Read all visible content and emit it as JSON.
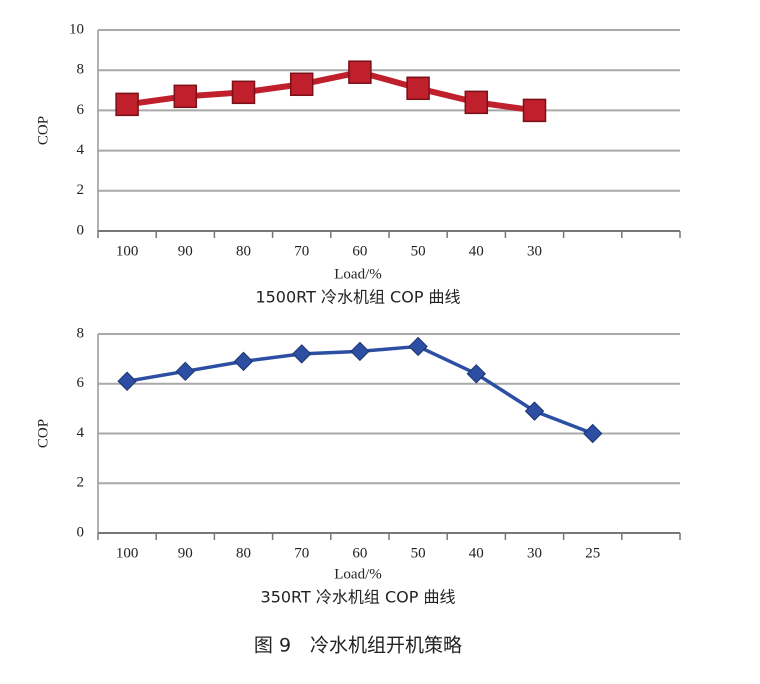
{
  "chart_data": [
    {
      "type": "line",
      "title": "1500RT 冷水机组 COP 曲线",
      "x_label": "Load/%",
      "y_label": "COP",
      "categories": [
        "100",
        "90",
        "80",
        "70",
        "60",
        "50",
        "40",
        "30",
        null,
        null
      ],
      "series": [
        {
          "name": "1500RT",
          "color": "#c01f2c",
          "marker": "square",
          "values": [
            6.3,
            6.7,
            6.9,
            7.3,
            7.9,
            7.1,
            6.4,
            6.0,
            null,
            null
          ]
        }
      ],
      "ylim": [
        0,
        10
      ],
      "yticks": [
        0,
        2,
        4,
        6,
        8,
        10
      ],
      "grid": true
    },
    {
      "type": "line",
      "title": "350RT 冷水机组 COP 曲线",
      "x_label": "Load/%",
      "y_label": "COP",
      "categories": [
        "100",
        "90",
        "80",
        "70",
        "60",
        "50",
        "40",
        "30",
        "25",
        null
      ],
      "series": [
        {
          "name": "350RT",
          "color": "#2c4fa3",
          "marker": "diamond",
          "values": [
            6.1,
            6.5,
            6.9,
            7.2,
            7.3,
            7.5,
            6.4,
            4.9,
            4.0,
            null
          ]
        }
      ],
      "ylim": [
        0,
        8
      ],
      "yticks": [
        0,
        2,
        4,
        6,
        8
      ],
      "grid": true
    }
  ],
  "caption": "图 9　冷水机组开机策略"
}
